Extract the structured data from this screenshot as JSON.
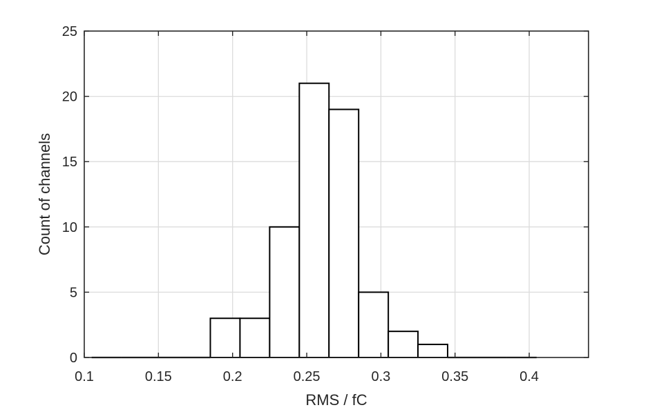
{
  "chart_data": {
    "type": "bar",
    "xlabel": "RMS / fC",
    "ylabel": "Count of channels",
    "xlim": [
      0.1,
      0.44
    ],
    "ylim": [
      0,
      25
    ],
    "x_ticks": [
      0.1,
      0.15,
      0.2,
      0.25,
      0.3,
      0.35,
      0.4
    ],
    "x_tick_labels": [
      "0.1",
      "0.15",
      "0.2",
      "0.25",
      "0.3",
      "0.35",
      "0.4"
    ],
    "y_ticks": [
      0,
      5,
      10,
      15,
      20,
      25
    ],
    "y_tick_labels": [
      "0",
      "5",
      "10",
      "15",
      "20",
      "25"
    ],
    "bin_edges": [
      0.105,
      0.125,
      0.145,
      0.165,
      0.185,
      0.205,
      0.225,
      0.245,
      0.265,
      0.285,
      0.305,
      0.325,
      0.345,
      0.365,
      0.385,
      0.405
    ],
    "values": [
      0,
      0,
      0,
      0,
      3,
      3,
      10,
      21,
      19,
      5,
      2,
      1,
      0,
      0,
      0
    ],
    "grid": true,
    "bar_face_color": "#ffffff",
    "bar_edge_color": "#000000"
  }
}
